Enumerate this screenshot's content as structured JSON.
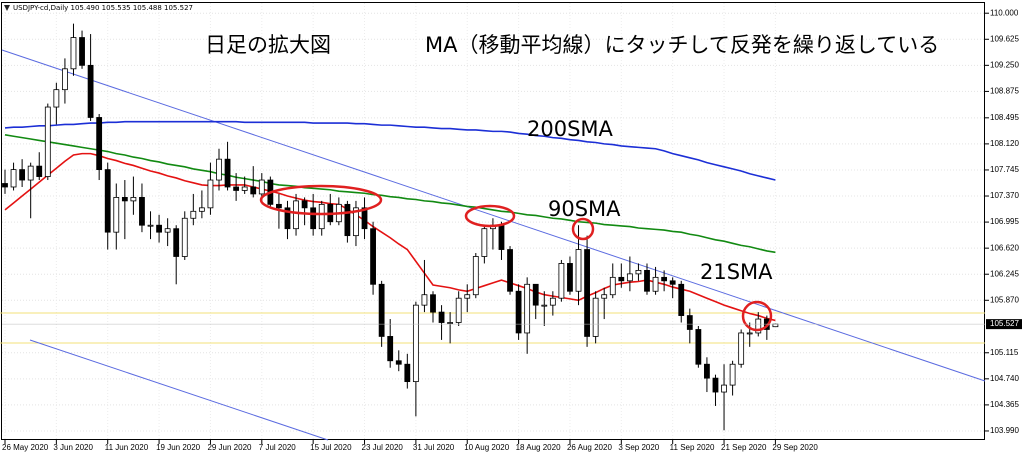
{
  "chart_data": {
    "type": "candlestick",
    "symbol_info": "USDJPY-cd,Daily  105.490 105.535 105.488 105.527",
    "annotations": [
      "日足の拡大図",
      "MA（移動平均線）にタッチして反発を繰り返している"
    ],
    "categories": [
      "26 May 2020",
      null,
      null,
      null,
      null,
      null,
      "3 Jun 2020",
      null,
      null,
      null,
      null,
      null,
      "11 Jun 2020",
      null,
      null,
      null,
      null,
      null,
      "19 Jun 2020",
      null,
      null,
      null,
      null,
      null,
      "29 Jun 2020",
      null,
      null,
      null,
      null,
      null,
      "7 Jul 2020",
      null,
      null,
      null,
      null,
      null,
      "15 Jul 2020",
      null,
      null,
      null,
      null,
      null,
      "23 Jul 2020",
      null,
      null,
      null,
      null,
      null,
      "31 Jul 2020",
      null,
      null,
      null,
      null,
      null,
      "10 Aug 2020",
      null,
      null,
      null,
      null,
      null,
      "18 Aug 2020",
      null,
      null,
      null,
      null,
      null,
      "26 Aug 2020",
      null,
      null,
      null,
      null,
      null,
      "3 Sep 2020",
      null,
      null,
      null,
      null,
      null,
      "11 Sep 2020",
      null,
      null,
      null,
      null,
      null,
      "21 Sep 2020",
      null,
      null,
      null,
      null,
      null,
      "29 Sep 2020"
    ],
    "open": [
      107.55,
      107.5,
      107.75,
      107.6,
      107.8,
      107.65,
      108.65,
      108.9,
      109.2,
      109.65,
      109.25,
      108.5,
      107.75,
      106.85,
      107.35,
      107.3,
      107.35,
      106.95,
      106.95,
      106.85,
      106.9,
      106.5,
      107.05,
      107.15,
      107.2,
      107.6,
      107.9,
      107.5,
      107.45,
      107.5,
      107.4,
      107.6,
      107.25,
      107.2,
      106.9,
      107.3,
      107.2,
      106.9,
      107.25,
      107.0,
      107.25,
      106.8,
      107.2,
      106.9,
      106.1,
      105.35,
      105.0,
      104.95,
      104.7,
      105.8,
      105.95,
      105.7,
      105.55,
      105.55,
      105.9,
      105.95,
      106.5,
      106.9,
      106.95,
      106.6,
      106.0,
      105.4,
      106.1,
      105.8,
      105.8,
      105.9,
      106.4,
      106.0,
      106.6,
      105.35,
      105.9,
      105.95,
      106.2,
      106.15,
      106.25,
      106.3,
      106.0,
      106.2,
      106.15,
      106.1,
      105.65,
      105.45,
      104.95,
      104.75,
      104.55,
      104.65,
      104.95,
      105.4,
      105.4,
      105.6,
      105.49
    ],
    "high": [
      107.75,
      107.85,
      107.9,
      107.85,
      108.0,
      108.7,
      109.0,
      109.35,
      109.85,
      109.75,
      109.7,
      108.55,
      107.85,
      107.55,
      107.6,
      107.65,
      107.55,
      107.15,
      107.1,
      107.05,
      106.95,
      107.15,
      107.4,
      107.45,
      107.85,
      108.05,
      108.15,
      107.7,
      107.65,
      107.8,
      107.7,
      107.65,
      107.4,
      107.3,
      107.4,
      107.35,
      107.4,
      107.3,
      107.4,
      107.35,
      107.3,
      107.3,
      107.35,
      107.0,
      106.15,
      105.6,
      105.15,
      105.1,
      105.85,
      106.45,
      106.0,
      105.8,
      105.7,
      106.0,
      106.1,
      106.55,
      106.95,
      107.05,
      107.0,
      106.65,
      106.1,
      106.2,
      106.1,
      106.0,
      106.0,
      106.45,
      106.5,
      106.95,
      106.8,
      106.0,
      106.05,
      106.4,
      106.4,
      106.5,
      106.4,
      106.4,
      106.35,
      106.3,
      106.2,
      106.15,
      105.75,
      105.5,
      105.05,
      104.8,
      104.95,
      105.0,
      105.45,
      105.55,
      105.7,
      105.65,
      105.535
    ],
    "low": [
      107.4,
      107.45,
      107.5,
      107.05,
      107.6,
      107.6,
      108.4,
      108.7,
      109.1,
      109.2,
      108.45,
      107.6,
      106.6,
      106.6,
      106.75,
      107.1,
      106.85,
      106.75,
      106.7,
      106.65,
      106.1,
      106.45,
      106.95,
      107.05,
      107.1,
      107.45,
      107.45,
      107.3,
      107.4,
      107.35,
      107.3,
      107.2,
      106.9,
      106.75,
      106.8,
      106.95,
      106.8,
      106.8,
      106.95,
      106.95,
      106.7,
      106.65,
      106.75,
      105.95,
      105.2,
      104.9,
      104.85,
      104.6,
      104.2,
      105.7,
      105.55,
      105.3,
      105.25,
      105.5,
      105.7,
      105.9,
      106.4,
      106.6,
      106.45,
      105.95,
      105.3,
      105.1,
      105.6,
      105.5,
      105.65,
      105.85,
      105.95,
      105.8,
      105.2,
      105.25,
      105.6,
      105.9,
      106.05,
      106.0,
      106.15,
      105.95,
      105.95,
      106.0,
      105.9,
      105.55,
      105.25,
      104.9,
      104.55,
      104.35,
      104.0,
      104.5,
      104.9,
      105.2,
      105.35,
      105.3,
      105.488
    ],
    "close": [
      107.5,
      107.75,
      107.6,
      107.8,
      107.65,
      108.65,
      108.9,
      109.2,
      109.65,
      109.25,
      108.5,
      107.75,
      106.85,
      107.35,
      107.3,
      107.35,
      106.95,
      106.95,
      106.85,
      106.9,
      106.5,
      107.05,
      107.15,
      107.2,
      107.6,
      107.9,
      107.5,
      107.45,
      107.5,
      107.4,
      107.6,
      107.25,
      107.2,
      106.9,
      107.3,
      107.2,
      106.9,
      107.25,
      107.0,
      107.25,
      106.8,
      107.2,
      106.9,
      106.1,
      105.35,
      105.0,
      104.95,
      104.7,
      105.8,
      105.95,
      105.7,
      105.55,
      105.55,
      105.9,
      105.95,
      106.5,
      106.9,
      106.95,
      106.6,
      106.0,
      105.4,
      106.1,
      105.8,
      105.8,
      105.9,
      106.4,
      106.0,
      106.6,
      105.35,
      105.9,
      105.95,
      106.2,
      106.15,
      106.25,
      106.3,
      106.0,
      106.2,
      106.15,
      106.1,
      105.65,
      105.45,
      104.95,
      104.75,
      104.55,
      104.65,
      104.95,
      105.4,
      105.4,
      105.6,
      105.45,
      105.527
    ],
    "series": [
      {
        "name": "200SMA",
        "color": "#1c2fd6",
        "values": [
          108.35,
          108.36,
          108.36,
          108.37,
          108.38,
          108.38,
          108.39,
          108.4,
          108.4,
          108.41,
          108.42,
          108.42,
          108.43,
          108.43,
          108.44,
          108.44,
          108.44,
          108.44,
          108.44,
          108.44,
          108.44,
          108.44,
          108.44,
          108.44,
          108.44,
          108.44,
          108.44,
          108.44,
          108.43,
          108.43,
          108.43,
          108.43,
          108.43,
          108.43,
          108.43,
          108.43,
          108.42,
          108.42,
          108.42,
          108.42,
          108.42,
          108.41,
          108.41,
          108.4,
          108.39,
          108.39,
          108.38,
          108.37,
          108.36,
          108.36,
          108.35,
          108.34,
          108.34,
          108.33,
          108.32,
          108.32,
          108.31,
          108.3,
          108.3,
          108.29,
          108.27,
          108.26,
          108.24,
          108.23,
          108.21,
          108.2,
          108.18,
          108.17,
          108.15,
          108.14,
          108.12,
          108.11,
          108.09,
          108.08,
          108.07,
          108.06,
          108.05,
          108.02,
          107.98,
          107.95,
          107.92,
          107.89,
          107.85,
          107.82,
          107.79,
          107.76,
          107.73,
          107.69,
          107.66,
          107.63,
          107.6
        ]
      },
      {
        "name": "90SMA",
        "color": "#128a12",
        "values": [
          108.25,
          108.23,
          108.21,
          108.19,
          108.17,
          108.15,
          108.13,
          108.11,
          108.09,
          108.07,
          108.05,
          108.03,
          108.01,
          107.98,
          107.96,
          107.93,
          107.91,
          107.88,
          107.86,
          107.83,
          107.81,
          107.79,
          107.76,
          107.74,
          107.72,
          107.69,
          107.67,
          107.64,
          107.62,
          107.6,
          107.58,
          107.55,
          107.53,
          107.52,
          107.51,
          107.49,
          107.48,
          107.47,
          107.46,
          107.44,
          107.43,
          107.42,
          107.41,
          107.39,
          107.38,
          107.36,
          107.35,
          107.33,
          107.32,
          107.3,
          107.29,
          107.27,
          107.26,
          107.24,
          107.22,
          107.21,
          107.19,
          107.17,
          107.15,
          107.14,
          107.12,
          107.1,
          107.09,
          107.07,
          107.05,
          107.04,
          107.02,
          107.0,
          106.99,
          106.98,
          106.96,
          106.95,
          106.94,
          106.93,
          106.91,
          106.9,
          106.89,
          106.88,
          106.86,
          106.85,
          106.82,
          106.8,
          106.77,
          106.74,
          106.72,
          106.69,
          106.66,
          106.64,
          106.61,
          106.58,
          106.56
        ]
      },
      {
        "name": "21SMA",
        "color": "#e41212",
        "values": [
          107.17,
          107.27,
          107.37,
          107.47,
          107.57,
          107.67,
          107.77,
          107.87,
          107.96,
          107.98,
          107.98,
          107.95,
          107.91,
          107.88,
          107.84,
          107.81,
          107.77,
          107.73,
          107.7,
          107.66,
          107.63,
          107.59,
          107.56,
          107.53,
          107.52,
          107.52,
          107.53,
          107.53,
          107.53,
          107.5,
          107.47,
          107.44,
          107.41,
          107.37,
          107.34,
          107.31,
          107.29,
          107.28,
          107.26,
          107.25,
          107.18,
          107.1,
          107.02,
          106.93,
          106.85,
          106.77,
          106.68,
          106.6,
          106.43,
          106.26,
          106.09,
          106.07,
          106.05,
          106.02,
          106.0,
          106.04,
          106.08,
          106.12,
          106.16,
          106.12,
          106.08,
          106.04,
          105.99,
          105.95,
          105.93,
          105.91,
          105.89,
          105.87,
          105.93,
          105.98,
          106.04,
          106.09,
          106.11,
          106.13,
          106.14,
          106.16,
          106.13,
          106.1,
          106.06,
          106.03,
          106.0,
          105.95,
          105.9,
          105.85,
          105.8,
          105.76,
          105.72,
          105.68,
          105.65,
          105.61,
          105.58
        ]
      }
    ],
    "current_price": {
      "value": 105.527,
      "label": "105.527"
    },
    "ylim": [
      103.86,
      110.19
    ],
    "yticks": [
      {
        "value": 110,
        "label": "110.000"
      },
      109.625,
      {
        "value": 109.25,
        "label": "109.250"
      },
      108.875,
      108.495,
      {
        "value": 108.12,
        "label": "108.120"
      },
      107.745,
      {
        "value": 107.37,
        "label": "107.370"
      },
      106.995,
      {
        "value": 106.62,
        "label": "106.620"
      },
      106.245,
      {
        "value": 105.87,
        "label": "105.870"
      },
      105.115,
      {
        "value": 104.74,
        "label": "104.740"
      },
      104.365,
      {
        "value": 103.99,
        "label": "103.990"
      }
    ],
    "grid": true
  }
}
